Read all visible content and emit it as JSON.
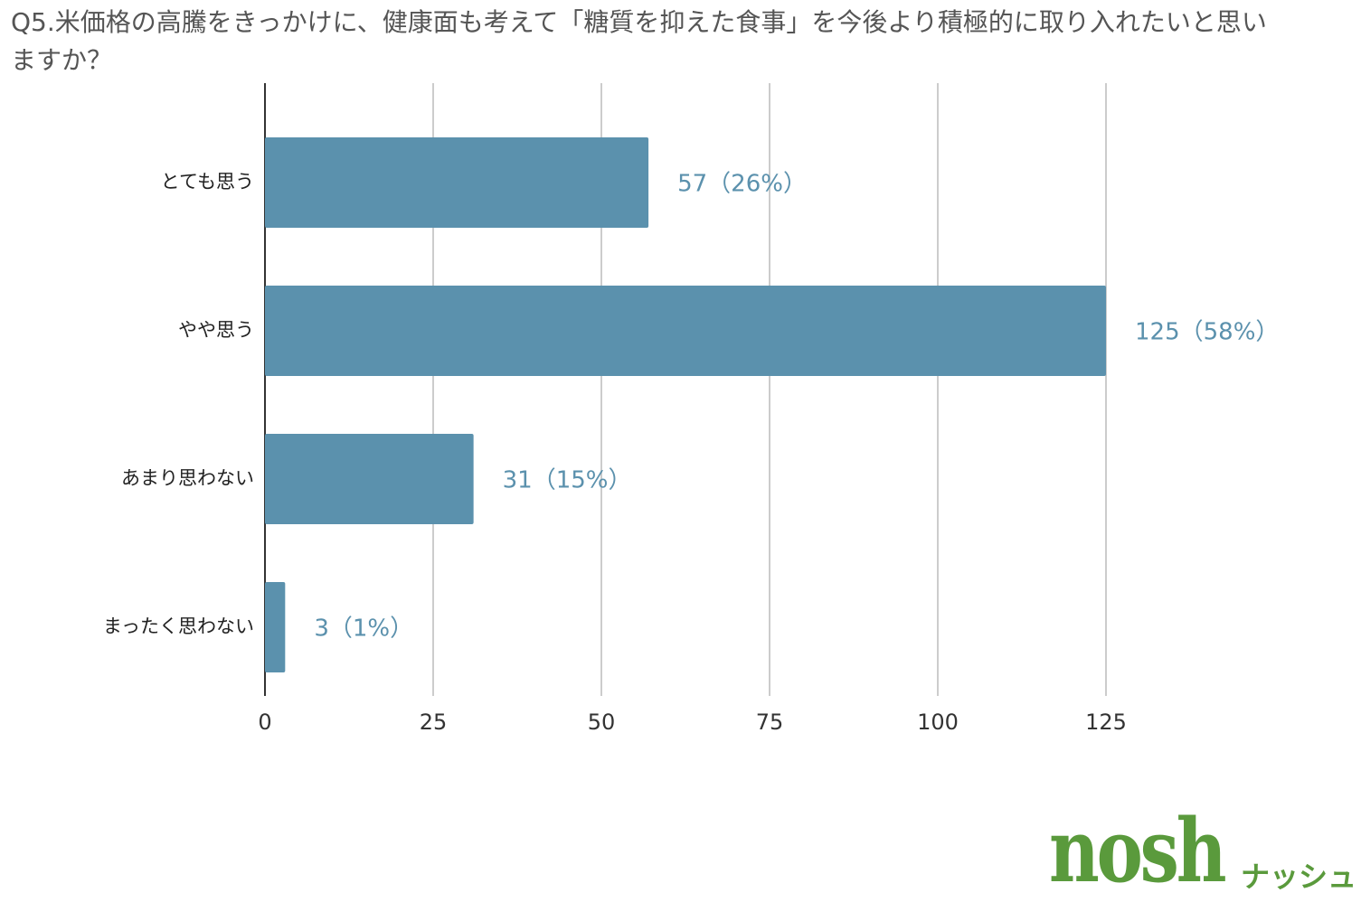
{
  "chart_data": {
    "type": "bar",
    "orientation": "horizontal",
    "title": "Q5.米価格の高騰をきっかけに、健康面も考えて「糖質を抑えた食事」を今後より積極的に取り入れたいと思いますか？",
    "categories": [
      "とても思う",
      "やや思う",
      "あまり思わない",
      "まったく思わない"
    ],
    "values": [
      57,
      125,
      31,
      3
    ],
    "value_labels": [
      "57（26%）",
      "125（58%）",
      "31（15%）",
      "3（1%）"
    ],
    "color": "#5b91ad",
    "xlim": [
      0,
      150
    ],
    "xticks": [
      0,
      25,
      50,
      75,
      100,
      125
    ],
    "grid": true
  },
  "logo": {
    "text": "nosh",
    "subtext": "ナッシュ"
  }
}
